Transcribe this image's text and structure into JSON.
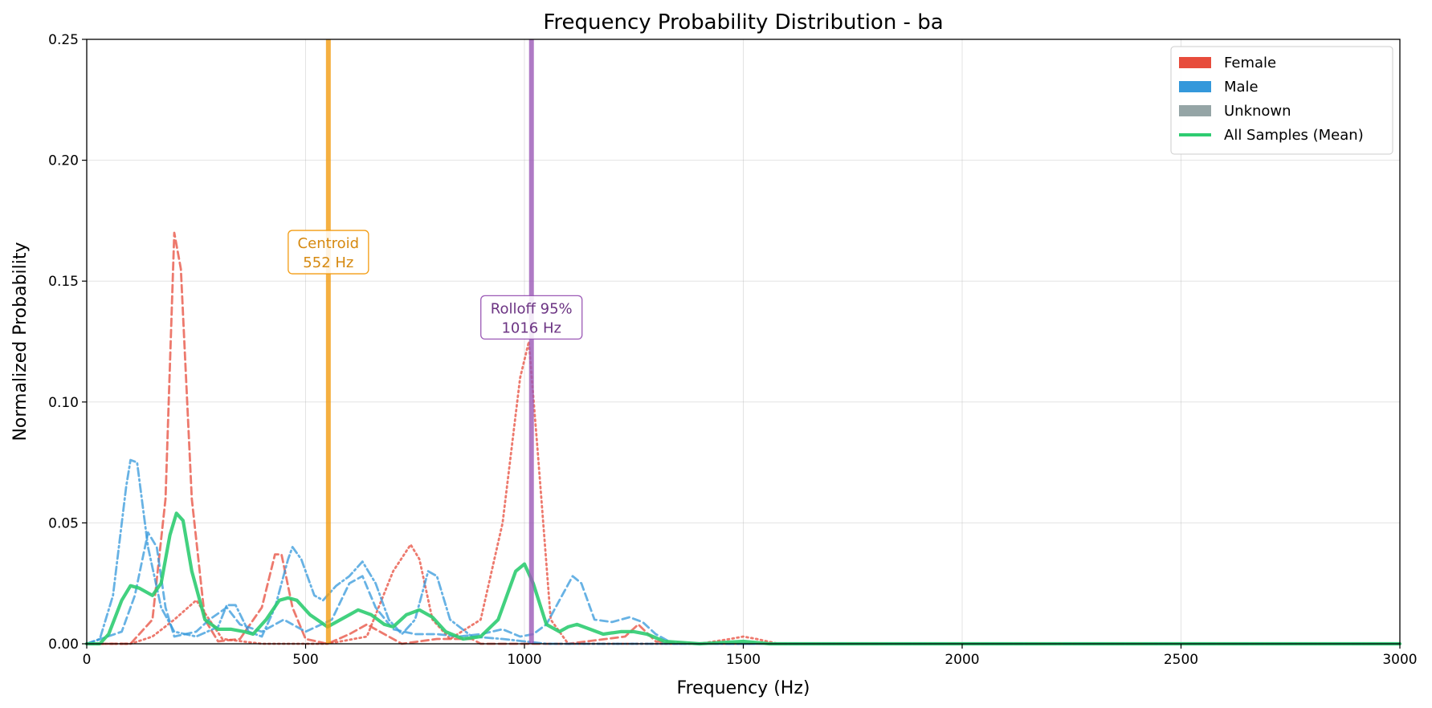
{
  "chart_data": {
    "type": "line",
    "title": "Frequency Probability Distribution - ba",
    "xlabel": "Frequency (Hz)",
    "ylabel": "Normalized Probability",
    "xlim": [
      0,
      3000
    ],
    "ylim": [
      0,
      0.25
    ],
    "x_ticks": [
      0,
      500,
      1000,
      1500,
      2000,
      2500,
      3000
    ],
    "y_ticks": [
      0.0,
      0.05,
      0.1,
      0.15,
      0.2,
      0.25
    ],
    "x_tick_labels": [
      "0",
      "500",
      "1000",
      "1500",
      "2000",
      "2500",
      "3000"
    ],
    "y_tick_labels": [
      "0.00",
      "0.05",
      "0.10",
      "0.15",
      "0.20",
      "0.25"
    ],
    "grid": true,
    "legend_position": "top-right",
    "legend": [
      {
        "label": "Female",
        "color": "#e74c3c",
        "kind": "patch"
      },
      {
        "label": "Male",
        "color": "#3498db",
        "kind": "patch"
      },
      {
        "label": "Unknown",
        "color": "#95a5a6",
        "kind": "patch"
      },
      {
        "label": "All Samples (Mean)",
        "color": "#2ecc71",
        "kind": "line"
      }
    ],
    "series": [
      {
        "group": "Female",
        "color": "#e74c3c",
        "style": "dashed",
        "points": [
          [
            0,
            0
          ],
          [
            100,
            0
          ],
          [
            150,
            0.01
          ],
          [
            180,
            0.06
          ],
          [
            200,
            0.17
          ],
          [
            215,
            0.155
          ],
          [
            240,
            0.06
          ],
          [
            270,
            0.01
          ],
          [
            300,
            0.001
          ],
          [
            350,
            0.002
          ],
          [
            400,
            0.015
          ],
          [
            430,
            0.037
          ],
          [
            445,
            0.037
          ],
          [
            470,
            0.015
          ],
          [
            500,
            0.002
          ],
          [
            550,
            0.0
          ],
          [
            600,
            0.004
          ],
          [
            640,
            0.008
          ],
          [
            680,
            0.004
          ],
          [
            720,
            0.0
          ],
          [
            800,
            0.002
          ],
          [
            880,
            0.002
          ],
          [
            900,
            0.0
          ],
          [
            1100,
            0
          ],
          [
            1230,
            0.003
          ],
          [
            1260,
            0.008
          ],
          [
            1300,
            0.001
          ],
          [
            1400,
            0
          ],
          [
            3000,
            0
          ]
        ]
      },
      {
        "group": "Female",
        "color": "#e74c3c",
        "style": "dotted",
        "points": [
          [
            0,
            0
          ],
          [
            100,
            0
          ],
          [
            150,
            0.003
          ],
          [
            200,
            0.01
          ],
          [
            250,
            0.018
          ],
          [
            280,
            0.01
          ],
          [
            310,
            0.002
          ],
          [
            400,
            0.0
          ],
          [
            550,
            0.0
          ],
          [
            640,
            0.003
          ],
          [
            700,
            0.03
          ],
          [
            740,
            0.041
          ],
          [
            760,
            0.035
          ],
          [
            790,
            0.01
          ],
          [
            830,
            0.002
          ],
          [
            900,
            0.01
          ],
          [
            950,
            0.05
          ],
          [
            990,
            0.11
          ],
          [
            1010,
            0.125
          ],
          [
            1030,
            0.08
          ],
          [
            1060,
            0.01
          ],
          [
            1100,
            0.0
          ],
          [
            1400,
            0.0
          ],
          [
            1470,
            0.002
          ],
          [
            1500,
            0.003
          ],
          [
            1530,
            0.002
          ],
          [
            1580,
            0.0
          ],
          [
            3000,
            0
          ]
        ]
      },
      {
        "group": "Male",
        "color": "#3498db",
        "style": "dashdot",
        "points": [
          [
            0,
            0
          ],
          [
            30,
            0.002
          ],
          [
            60,
            0.02
          ],
          [
            90,
            0.065
          ],
          [
            100,
            0.076
          ],
          [
            115,
            0.075
          ],
          [
            140,
            0.04
          ],
          [
            170,
            0.015
          ],
          [
            200,
            0.005
          ],
          [
            250,
            0.003
          ],
          [
            300,
            0.007
          ],
          [
            320,
            0.016
          ],
          [
            340,
            0.016
          ],
          [
            370,
            0.005
          ],
          [
            400,
            0.003
          ],
          [
            430,
            0.015
          ],
          [
            460,
            0.035
          ],
          [
            470,
            0.04
          ],
          [
            490,
            0.035
          ],
          [
            520,
            0.02
          ],
          [
            540,
            0.018
          ],
          [
            570,
            0.024
          ],
          [
            600,
            0.028
          ],
          [
            630,
            0.034
          ],
          [
            660,
            0.025
          ],
          [
            690,
            0.01
          ],
          [
            720,
            0.004
          ],
          [
            750,
            0.01
          ],
          [
            780,
            0.03
          ],
          [
            800,
            0.028
          ],
          [
            830,
            0.01
          ],
          [
            880,
            0.003
          ],
          [
            950,
            0.002
          ],
          [
            1000,
            0.001
          ],
          [
            1050,
            0.0
          ],
          [
            1200,
            0.0
          ],
          [
            3000,
            0
          ]
        ]
      },
      {
        "group": "Male",
        "color": "#3498db",
        "style": "dashed",
        "points": [
          [
            0,
            0
          ],
          [
            80,
            0.005
          ],
          [
            110,
            0.02
          ],
          [
            140,
            0.046
          ],
          [
            160,
            0.04
          ],
          [
            180,
            0.015
          ],
          [
            200,
            0.003
          ],
          [
            250,
            0.005
          ],
          [
            280,
            0.01
          ],
          [
            320,
            0.015
          ],
          [
            350,
            0.008
          ],
          [
            400,
            0.005
          ],
          [
            450,
            0.01
          ],
          [
            500,
            0.005
          ],
          [
            560,
            0.01
          ],
          [
            600,
            0.025
          ],
          [
            630,
            0.028
          ],
          [
            660,
            0.015
          ],
          [
            700,
            0.006
          ],
          [
            750,
            0.004
          ],
          [
            800,
            0.004
          ],
          [
            850,
            0.003
          ],
          [
            900,
            0.004
          ],
          [
            950,
            0.006
          ],
          [
            990,
            0.003
          ],
          [
            1020,
            0.004
          ],
          [
            1050,
            0.008
          ],
          [
            1080,
            0.018
          ],
          [
            1110,
            0.028
          ],
          [
            1130,
            0.025
          ],
          [
            1160,
            0.01
          ],
          [
            1200,
            0.009
          ],
          [
            1240,
            0.011
          ],
          [
            1270,
            0.009
          ],
          [
            1300,
            0.004
          ],
          [
            1340,
            0.0
          ],
          [
            3000,
            0
          ]
        ]
      },
      {
        "group": "All Samples (Mean)",
        "color": "#2ecc71",
        "style": "solid",
        "points": [
          [
            0,
            0
          ],
          [
            30,
            0.0
          ],
          [
            50,
            0.004
          ],
          [
            80,
            0.018
          ],
          [
            100,
            0.024
          ],
          [
            120,
            0.023
          ],
          [
            150,
            0.02
          ],
          [
            170,
            0.025
          ],
          [
            190,
            0.045
          ],
          [
            205,
            0.054
          ],
          [
            220,
            0.051
          ],
          [
            240,
            0.03
          ],
          [
            270,
            0.01
          ],
          [
            300,
            0.006
          ],
          [
            330,
            0.006
          ],
          [
            360,
            0.005
          ],
          [
            380,
            0.004
          ],
          [
            410,
            0.01
          ],
          [
            440,
            0.018
          ],
          [
            460,
            0.019
          ],
          [
            480,
            0.018
          ],
          [
            510,
            0.012
          ],
          [
            550,
            0.007
          ],
          [
            600,
            0.012
          ],
          [
            620,
            0.014
          ],
          [
            650,
            0.012
          ],
          [
            680,
            0.008
          ],
          [
            700,
            0.007
          ],
          [
            730,
            0.012
          ],
          [
            760,
            0.014
          ],
          [
            790,
            0.011
          ],
          [
            820,
            0.005
          ],
          [
            860,
            0.002
          ],
          [
            900,
            0.003
          ],
          [
            940,
            0.01
          ],
          [
            980,
            0.03
          ],
          [
            1000,
            0.033
          ],
          [
            1020,
            0.025
          ],
          [
            1050,
            0.008
          ],
          [
            1080,
            0.005
          ],
          [
            1100,
            0.007
          ],
          [
            1120,
            0.008
          ],
          [
            1150,
            0.006
          ],
          [
            1180,
            0.004
          ],
          [
            1220,
            0.005
          ],
          [
            1250,
            0.005
          ],
          [
            1280,
            0.004
          ],
          [
            1320,
            0.001
          ],
          [
            1400,
            0.0
          ],
          [
            1500,
            0.001
          ],
          [
            1560,
            0.0
          ],
          [
            3000,
            0.0
          ]
        ]
      }
    ],
    "vertical_lines": [
      {
        "x": 552,
        "color": "#f39c12",
        "label_line1": "Centroid",
        "label_line2": "552 Hz",
        "text_color": "#d68910",
        "label_y": 0.162
      },
      {
        "x": 1016,
        "color": "#9b59b6",
        "label_line1": "Rolloff 95%",
        "label_line2": "1016 Hz",
        "text_color": "#6c3483",
        "label_y": 0.135
      }
    ]
  }
}
